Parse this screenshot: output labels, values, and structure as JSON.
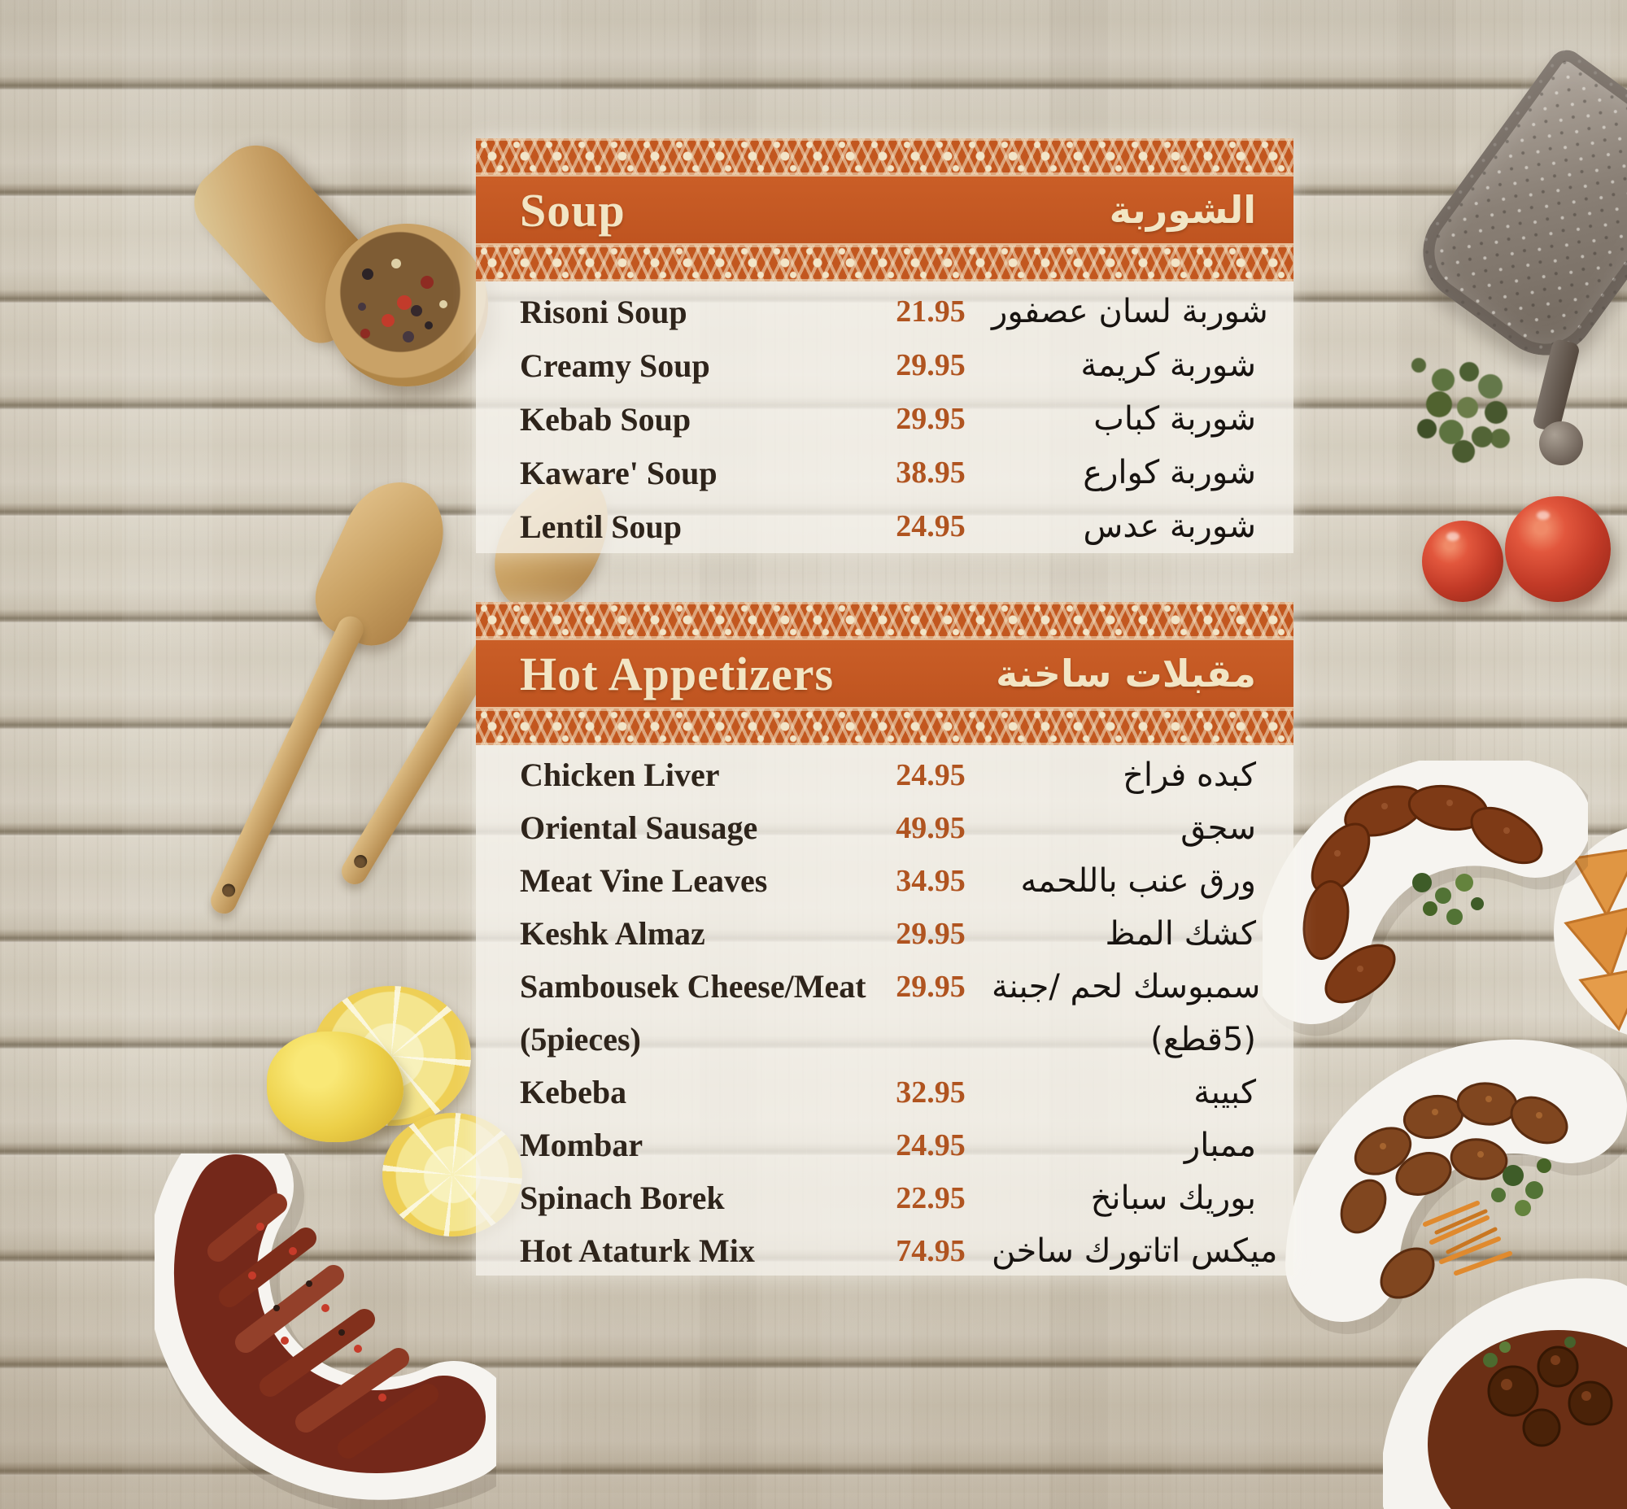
{
  "page": {
    "type": "restaurant-menu"
  },
  "colors": {
    "band_orange": "#c2571f",
    "lace_cream": "#f2e5c8",
    "price_text": "#b05420",
    "item_text_en": "#2e241b",
    "item_text_ar": "#171310",
    "panel_bg": "rgba(246,243,237,0.78)"
  },
  "menu": {
    "sections": [
      {
        "title_en": "Soup",
        "title_ar": "الشوربة",
        "items": [
          {
            "en": "Risoni Soup",
            "price": "21.95",
            "ar": "شوربة لسان عصفور"
          },
          {
            "en": "Creamy Soup",
            "price": "29.95",
            "ar": "شوربة كريمة"
          },
          {
            "en": "Kebab Soup",
            "price": "29.95",
            "ar": "شوربة كباب"
          },
          {
            "en": "Kaware' Soup",
            "price": "38.95",
            "ar": "شوربة كوارع"
          },
          {
            "en": "Lentil Soup",
            "price": "24.95",
            "ar": "شوربة عدس"
          }
        ]
      },
      {
        "title_en": "Hot Appetizers",
        "title_ar": "مقبلات ساخنة",
        "items": [
          {
            "en": "Chicken Liver",
            "price": "24.95",
            "ar": "كبده فراخ"
          },
          {
            "en": "Oriental Sausage",
            "price": "49.95",
            "ar": "سجق"
          },
          {
            "en": "Meat Vine Leaves",
            "price": "34.95",
            "ar": "ورق عنب باللحمه"
          },
          {
            "en": "Keshk Almaz",
            "price": "29.95",
            "ar": "كشك المظ"
          },
          {
            "en": "Sambousek Cheese/Meat",
            "price": "29.95",
            "ar": "سمبوسك لحم /جبنة"
          },
          {
            "en": "(5pieces)",
            "price": "",
            "ar": "(5قطع)"
          },
          {
            "en": "Kebeba",
            "price": "32.95",
            "ar": "كبيبة"
          },
          {
            "en": "Mombar",
            "price": "24.95",
            "ar": "ممبار"
          },
          {
            "en": "Spinach Borek",
            "price": "22.95",
            "ar": "بوريك سبانخ"
          },
          {
            "en": "Hot Ataturk Mix",
            "price": "74.95",
            "ar": "ميكس اتاتورك ساخن"
          }
        ]
      }
    ]
  },
  "decorations": {
    "items": [
      {
        "name": "wooden-scoop-peppercorns-photo"
      },
      {
        "name": "metal-grater-photo"
      },
      {
        "name": "thyme-sprig-photo"
      },
      {
        "name": "tomatoes-photo"
      },
      {
        "name": "wooden-spatulas-photo"
      },
      {
        "name": "lemon-slices-photo"
      },
      {
        "name": "sausage-dish-photo"
      },
      {
        "name": "kibbeh-plate-photo"
      },
      {
        "name": "sambousek-plate-photo"
      },
      {
        "name": "meatball-plate-photo"
      },
      {
        "name": "meat-stew-bowl-photo"
      }
    ]
  }
}
